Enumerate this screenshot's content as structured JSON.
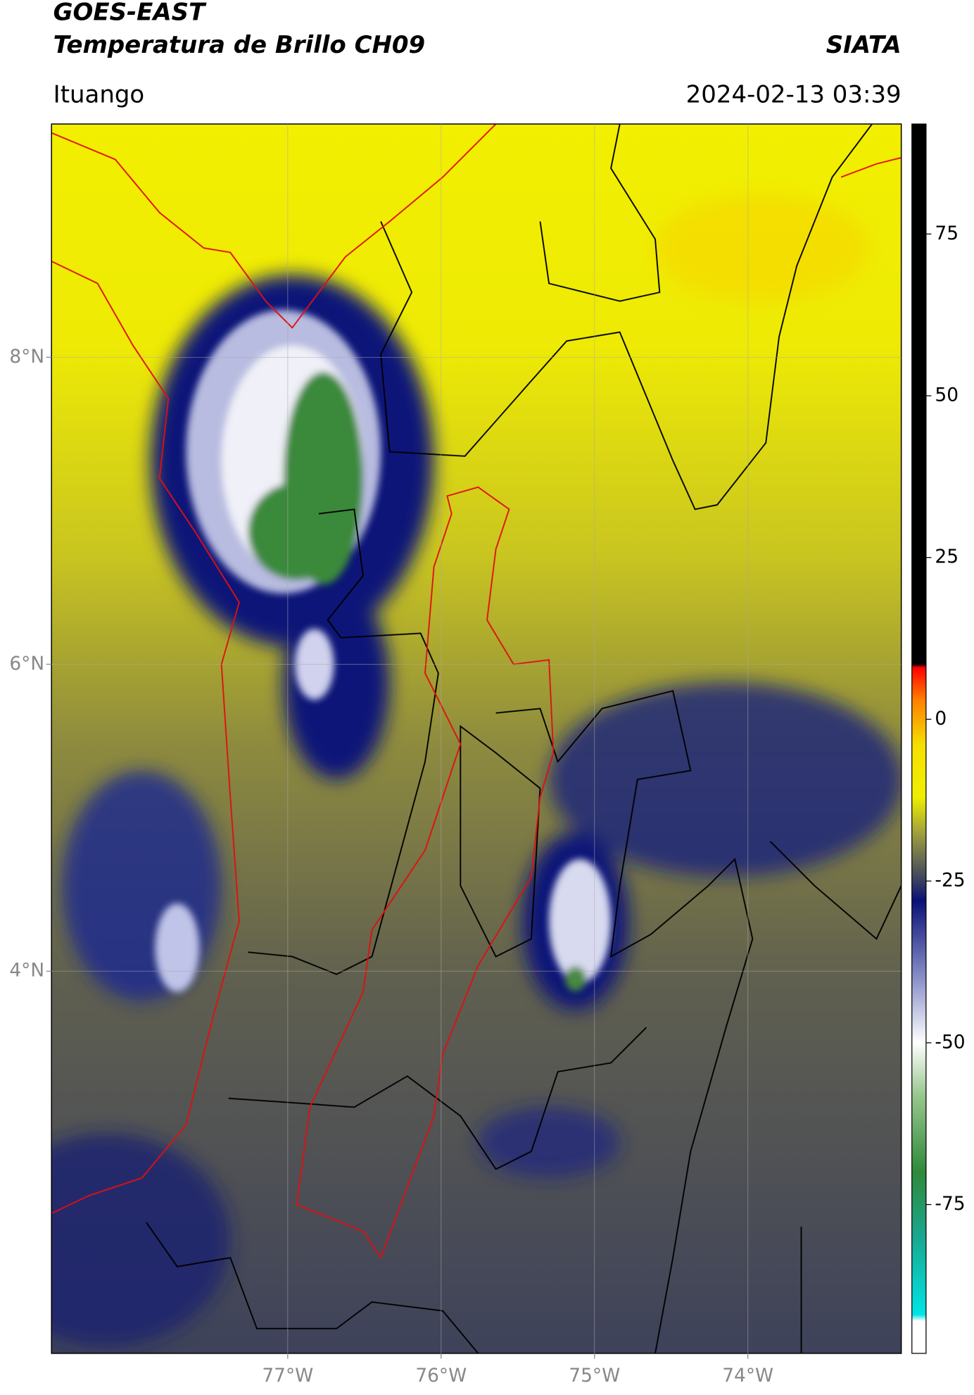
{
  "chart_data": {
    "type": "map",
    "title": "GOES-EAST",
    "subtitle": "Temperatura de Brillo CH09",
    "source": "SIATA",
    "location": "Ituango",
    "datetime": "2024-02-13 03:39",
    "xlim": [
      -78.54,
      -73.0
    ],
    "ylim": [
      1.51,
      9.52
    ],
    "xticks": [
      {
        "value": -77,
        "label": "77°W"
      },
      {
        "value": -76,
        "label": "76°W"
      },
      {
        "value": -75,
        "label": "75°W"
      },
      {
        "value": -74,
        "label": "74°W"
      }
    ],
    "yticks": [
      {
        "value": 8,
        "label": "8°N"
      },
      {
        "value": 6,
        "label": "6°N"
      },
      {
        "value": 4,
        "label": "4°N"
      }
    ],
    "grid": true,
    "clim": [
      -98,
      92
    ],
    "cticks": [
      75,
      50,
      25,
      0,
      -25,
      -50,
      -75
    ],
    "colorscale": [
      {
        "value": -98,
        "color": "#ffffff"
      },
      {
        "value": -93,
        "color": "#ffffff"
      },
      {
        "value": -92,
        "color": "#00e5e5"
      },
      {
        "value": -80,
        "color": "#1aa890"
      },
      {
        "value": -70,
        "color": "#2f8a3a"
      },
      {
        "value": -58,
        "color": "#9ac890"
      },
      {
        "value": -50,
        "color": "#ffffff"
      },
      {
        "value": -40,
        "color": "#8a90c8"
      },
      {
        "value": -28,
        "color": "#0a1278"
      },
      {
        "value": -25,
        "color": "#3a4060"
      },
      {
        "value": -18,
        "color": "#9a9a40"
      },
      {
        "value": -12,
        "color": "#f0f000"
      },
      {
        "value": -4,
        "color": "#f5e000"
      },
      {
        "value": 3,
        "color": "#ff8000"
      },
      {
        "value": 8,
        "color": "#ff0000"
      },
      {
        "value": 8.5,
        "color": "#000000"
      },
      {
        "value": 92,
        "color": "#000000"
      }
    ]
  }
}
